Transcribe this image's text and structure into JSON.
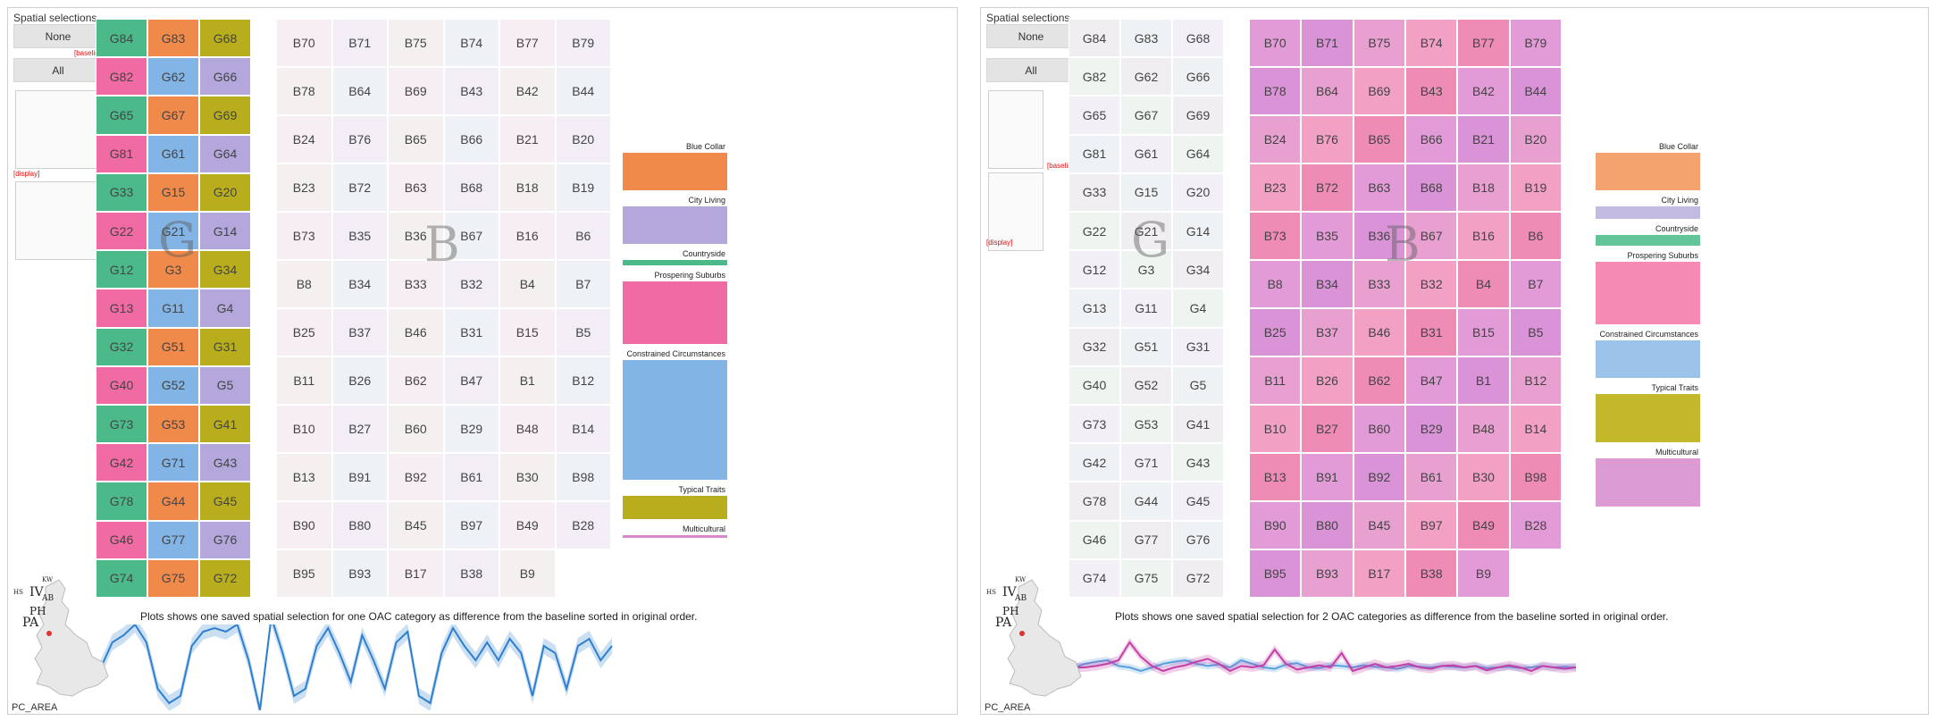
{
  "panels": [
    {
      "selections_title": "Spatial selections",
      "none_label": "None",
      "all_label": "All",
      "baseline_tag": "[baseline]",
      "display_tag": "[display]",
      "caption": "Plots shows one saved spatial selection for one OAC category as difference from the baseline sorted in original order.",
      "map_label": "PC_AREA",
      "map_codes": [
        "IV",
        "AB",
        "PH",
        "PA",
        "KW",
        "HS"
      ],
      "legend": [
        {
          "label": "Blue Collar",
          "color": "#f08a4b",
          "height": 42,
          "visible": true
        },
        {
          "label": "City Living",
          "color": "#b3a7db",
          "height": 42,
          "visible": true
        },
        {
          "label": "Countryside",
          "color": "#4bb98a",
          "height": 6,
          "visible": true
        },
        {
          "label": "Prospering Suburbs",
          "color": "#f06aa3",
          "height": 70,
          "visible": true
        },
        {
          "label": "Constrained Circumstances",
          "color": "#82b4e5",
          "height": 134,
          "visible": true
        },
        {
          "label": "Typical Traits",
          "color": "#b7ad1d",
          "height": 26,
          "visible": true
        },
        {
          "label": "Multicultural",
          "color": "#d988cc",
          "height": 3,
          "visible": true
        }
      ],
      "legend_display_tag": "[display]",
      "legend_baseline_tag": ""
    },
    {
      "selections_title": "Spatial selections",
      "none_label": "None",
      "all_label": "All",
      "baseline_tag": "[baseline]",
      "display_tag": "[display]",
      "caption": "Plots shows one saved spatial selection for 2 OAC categories as difference from the baseline sorted in original order.",
      "map_label": "PC_AREA",
      "map_codes": [
        "IV",
        "AB",
        "PH",
        "PA",
        "KW",
        "HS"
      ],
      "legend": [
        {
          "label": "Blue Collar",
          "color": "#f4a26e",
          "height": 42,
          "visible": true
        },
        {
          "label": "City Living",
          "color": "#c4bbe3",
          "height": 14,
          "visible": true
        },
        {
          "label": "Countryside",
          "color": "#62c499",
          "height": 12,
          "visible": true
        },
        {
          "label": "Prospering Suburbs",
          "color": "#f58ab5",
          "height": 70,
          "visible": true
        },
        {
          "label": "Constrained Circumstances",
          "color": "#9cc3ea",
          "height": 42,
          "visible": true
        },
        {
          "label": "Typical Traits",
          "color": "#c2b82a",
          "height": 54,
          "visible": true
        },
        {
          "label": "Multicultural",
          "color": "#dc9bd2",
          "height": 54,
          "visible": true
        }
      ],
      "legend_display_tag": "[display]",
      "legend_baseline_tag": "[baseline]"
    }
  ],
  "treemap_g_labels": [
    "G84",
    "G83",
    "G68",
    "G82",
    "G62",
    "G66",
    "G65",
    "G67",
    "G69",
    "G81",
    "G61",
    "G64",
    "G33",
    "G15",
    "G20",
    "G22",
    "G21",
    "G14",
    "G12",
    "G3",
    "G34",
    "G13",
    "G11",
    "G4",
    "G32",
    "G51",
    "G31",
    "G40",
    "G52",
    "G5",
    "G73",
    "G53",
    "G41",
    "G42",
    "G71",
    "G43",
    "G78",
    "G44",
    "G45",
    "G46",
    "G77",
    "G76",
    "G74",
    "G75",
    "G72"
  ],
  "treemap_b_labels": [
    "B70",
    "B71",
    "B75",
    "B74",
    "B77",
    "B79",
    "B78",
    "B64",
    "B69",
    "B43",
    "B42",
    "B44",
    "B24",
    "B76",
    "B65",
    "B66",
    "B21",
    "B20",
    "B23",
    "B72",
    "B63",
    "B68",
    "B18",
    "B19",
    "B73",
    "B35",
    "B36",
    "B67",
    "B16",
    "B6",
    "B8",
    "B34",
    "B33",
    "B32",
    "B4",
    "B7",
    "B25",
    "B37",
    "B46",
    "B31",
    "B15",
    "B5",
    "B11",
    "B26",
    "B62",
    "B47",
    "B1",
    "B12",
    "B10",
    "B27",
    "B60",
    "B29",
    "B48",
    "B14",
    "B13",
    "B91",
    "B92",
    "B61",
    "B30",
    "B98",
    "B90",
    "B80",
    "B45",
    "B97",
    "B49",
    "B28",
    "B95",
    "B93",
    "B17",
    "B38",
    "B9"
  ],
  "big_letters": {
    "g": "G",
    "b": "B"
  },
  "series": [
    {
      "name": "",
      "color": "#2f7fd1",
      "values": [
        0.0,
        0.35,
        0.45,
        0.6,
        0.35,
        -0.3,
        -0.5,
        -0.4,
        0.3,
        0.5,
        0.55,
        0.5,
        0.6,
        0.1,
        -0.6,
        0.7,
        0.2,
        -0.4,
        -0.3,
        0.3,
        0.55,
        0.2,
        -0.2,
        0.45,
        0.1,
        -0.3,
        0.35,
        0.5,
        -0.4,
        -0.5,
        0.2,
        0.55,
        0.3,
        0.1,
        0.35,
        0.1,
        0.4,
        0.2,
        -0.4,
        0.3,
        0.2,
        -0.3,
        0.3,
        0.4,
        0.1,
        0.3
      ]
    },
    {
      "name": "",
      "color": "#5aa0e0",
      "values": [
        0.0,
        0.05,
        0.08,
        0.1,
        0.02,
        0.0,
        -0.05,
        0.0,
        0.05,
        0.08,
        0.1,
        0.05,
        0.02,
        0.04,
        0.0,
        0.1,
        0.05,
        0.0,
        -0.02,
        0.04,
        0.06,
        0.0,
        -0.01,
        0.03,
        0.02,
        0.0,
        0.03,
        0.01,
        0.0,
        -0.02,
        0.02,
        0.01,
        0.0,
        0.02,
        0.01,
        0.0,
        0.02,
        -0.01,
        0.0,
        0.01,
        -0.01,
        0.0,
        0.02,
        0.0,
        0.01,
        0.0
      ]
    },
    {
      "name": "",
      "color": "#c43fa6",
      "values": [
        0.0,
        0.0,
        0.02,
        0.05,
        0.1,
        0.35,
        0.15,
        0.02,
        -0.05,
        0.0,
        0.03,
        0.08,
        0.12,
        0.05,
        -0.05,
        0.02,
        0.0,
        0.03,
        0.25,
        0.05,
        -0.03,
        0.0,
        0.03,
        0.0,
        0.2,
        -0.05,
        0.0,
        0.05,
        0.0,
        0.02,
        0.05,
        0.0,
        -0.02,
        0.02,
        0.03,
        0.0,
        0.02,
        -0.04,
        0.0,
        0.03,
        0.0,
        -0.05,
        0.02,
        0.0,
        -0.02,
        0.0
      ]
    }
  ]
}
